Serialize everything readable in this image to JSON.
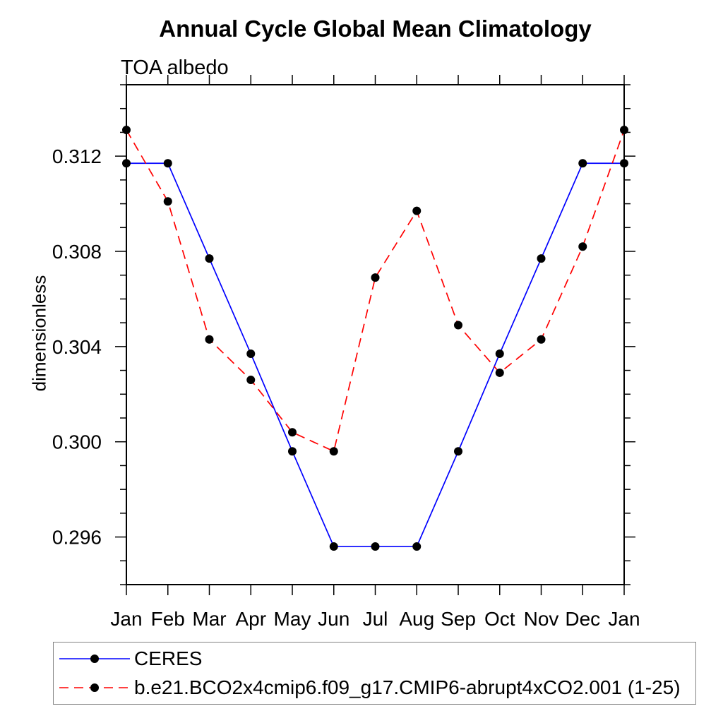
{
  "chart_data": {
    "type": "line",
    "title": "Annual Cycle Global Mean Climatology",
    "subtitle": "TOA albedo",
    "xlabel": "",
    "ylabel": "dimensionless",
    "categories": [
      "Jan",
      "Feb",
      "Mar",
      "Apr",
      "May",
      "Jun",
      "Jul",
      "Aug",
      "Sep",
      "Oct",
      "Nov",
      "Dec",
      "Jan"
    ],
    "series": [
      {
        "name": "CERES",
        "color": "#0000ff",
        "line_style": "solid",
        "marker": "circle",
        "marker_color": "#000000",
        "values": [
          0.3117,
          0.3117,
          0.3077,
          0.3037,
          0.2996,
          0.2956,
          0.2956,
          0.2956,
          0.2996,
          0.3037,
          0.3077,
          0.3117,
          0.3117
        ]
      },
      {
        "name": "b.e21.BCO2x4cmip6.f09_g17.CMIP6-abrupt4xCO2.001 (1-25)",
        "color": "#ff0000",
        "line_style": "dashed",
        "marker": "circle",
        "marker_color": "#000000",
        "values": [
          0.3131,
          0.3101,
          0.3043,
          0.3026,
          0.3004,
          0.2996,
          0.3069,
          0.3097,
          0.3049,
          0.3029,
          0.3043,
          0.3082,
          0.3131
        ]
      }
    ],
    "ylim": [
      0.294,
      0.315
    ],
    "y_major_ticks": [
      0.296,
      0.3,
      0.304,
      0.308,
      0.312
    ],
    "y_tick_labels": [
      "0.296",
      "0.300",
      "0.304",
      "0.308",
      "0.312"
    ],
    "y_minor_step": 0.001,
    "grid": false,
    "legend_position": "bottom-left",
    "axis_color": "#000000",
    "text_color": "#000000"
  }
}
